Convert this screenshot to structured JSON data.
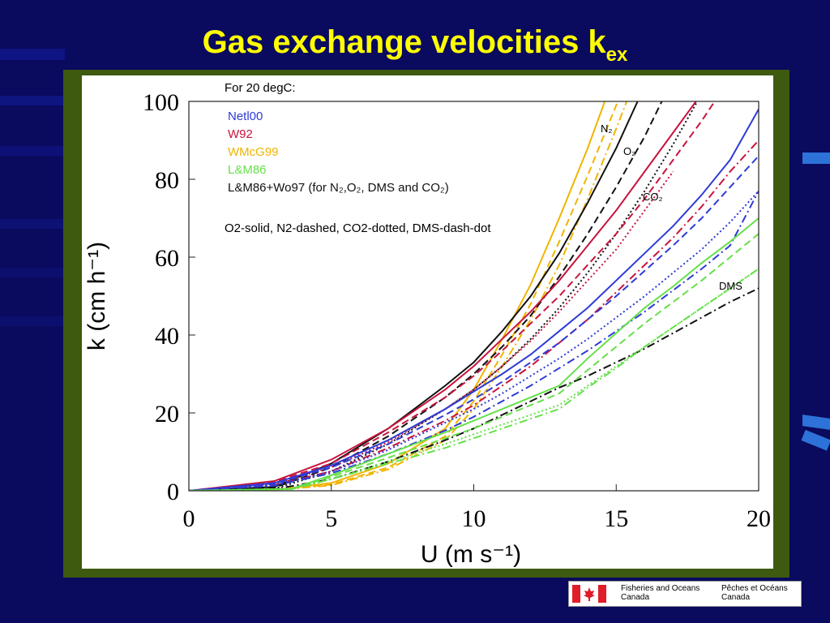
{
  "slide": {
    "title": "Gas exchange velocities k",
    "title_subscript": "ex",
    "title_color": "#ffff00",
    "background_color": "#0a0a5e",
    "frame_color": "#3d5a10"
  },
  "logo": {
    "name": "canada-flag-icon",
    "en_line1": "Fisheries and Oceans",
    "en_line2": "Canada",
    "fr_line1": "Pêches et Océans",
    "fr_line2": "Canada"
  },
  "chart_data": {
    "type": "line",
    "header": "For 20 degC:",
    "xlabel": "U (m s⁻¹)",
    "ylabel": "k  (cm h⁻¹)",
    "xlim": [
      0,
      20
    ],
    "ylim": [
      0,
      100
    ],
    "xticks": [
      "0",
      "5",
      "10",
      "15",
      "20"
    ],
    "yticks": [
      "0",
      "20",
      "40",
      "60",
      "80",
      "100"
    ],
    "grid": false,
    "legend_position": "top-left",
    "legend": [
      {
        "label": "Netl00",
        "color": "#2e3bd6"
      },
      {
        "label": "W92",
        "color": "#c8143c"
      },
      {
        "label": "WMcG99",
        "color": "#f0b400"
      },
      {
        "label": "L&M86",
        "color": "#66e04a"
      },
      {
        "label": "L&M86+Wo97 (for N₂,O₂, DMS and CO₂)",
        "color": "#111111"
      }
    ],
    "style_note": "O2-solid, N2-dashed, CO2-dotted, DMS-dash-dot",
    "curve_labels": [
      "N₂",
      "O₂",
      "CO₂",
      "DMS"
    ],
    "series": [
      {
        "name": "WMcG99 O2",
        "color": "#f0b400",
        "dash": "solid",
        "x": [
          0,
          3,
          5,
          7,
          9,
          10,
          11,
          12,
          13,
          14,
          15
        ],
        "y": [
          0,
          0.2,
          2,
          7,
          16,
          26,
          39,
          53,
          70,
          88,
          108
        ]
      },
      {
        "name": "WMcG99 N2",
        "color": "#f0b400",
        "dash": "dashed",
        "x": [
          0,
          3,
          5,
          7,
          9,
          10,
          11,
          12,
          13,
          14,
          15,
          16
        ],
        "y": [
          0,
          0.2,
          1.6,
          6,
          14,
          23,
          35,
          48,
          64,
          81,
          99,
          118
        ]
      },
      {
        "name": "WMcG99 DMS",
        "color": "#f0b400",
        "dash": "dashdot",
        "x": [
          0,
          3,
          5,
          7,
          9,
          10,
          11,
          12,
          13,
          14,
          15,
          16
        ],
        "y": [
          0,
          0.2,
          1.4,
          5.5,
          13,
          21,
          32,
          44,
          58,
          75,
          93,
          112
        ]
      },
      {
        "name": "L&M86+Wo97 O2",
        "color": "#111111",
        "dash": "solid",
        "x": [
          0,
          3,
          5,
          7,
          9,
          10,
          11,
          12,
          13,
          14,
          15,
          16
        ],
        "y": [
          0,
          1,
          7,
          16,
          27,
          33,
          41,
          50,
          61,
          74,
          88,
          104
        ]
      },
      {
        "name": "L&M86+Wo97 N2",
        "color": "#111111",
        "dash": "dashed",
        "x": [
          0,
          3,
          5,
          7,
          9,
          10,
          11,
          12,
          13,
          14,
          15,
          16,
          17
        ],
        "y": [
          0,
          0.8,
          6,
          14,
          24,
          30,
          37,
          45,
          55,
          66,
          78,
          91,
          106
        ]
      },
      {
        "name": "L&M86+Wo97 CO2",
        "color": "#111111",
        "dash": "dotted",
        "x": [
          0,
          3,
          5,
          7,
          9,
          10,
          11,
          12,
          13,
          14,
          15,
          16,
          17,
          18
        ],
        "y": [
          0,
          0.5,
          5,
          12,
          21,
          26,
          32,
          39,
          47,
          56,
          66,
          77,
          89,
          102
        ]
      },
      {
        "name": "L&M86+Wo97 DMS",
        "color": "#111111",
        "dash": "dashdot",
        "x": [
          0,
          3,
          5,
          7,
          9,
          10,
          11,
          12,
          13,
          14,
          15,
          16,
          17,
          18,
          19,
          20
        ],
        "y": [
          0,
          0.4,
          3,
          7.5,
          13,
          16,
          19.5,
          23,
          26.5,
          29.5,
          33,
          36.5,
          40.5,
          44.5,
          48.5,
          52
        ]
      },
      {
        "name": "W92 O2",
        "color": "#c8143c",
        "dash": "solid",
        "x": [
          0,
          3,
          5,
          7,
          9,
          10,
          11,
          12,
          13,
          14,
          15,
          16,
          17,
          18
        ],
        "y": [
          0,
          2.5,
          8,
          16,
          26,
          32,
          39,
          46,
          54,
          63,
          72,
          82,
          92,
          102
        ]
      },
      {
        "name": "W92 N2",
        "color": "#c8143c",
        "dash": "dashed",
        "x": [
          0,
          3,
          5,
          7,
          9,
          10,
          11,
          12,
          13,
          14,
          15,
          16,
          17,
          18,
          19
        ],
        "y": [
          0,
          2.3,
          7,
          15,
          24,
          29.5,
          36,
          43,
          50,
          58,
          66,
          75,
          85,
          95,
          106
        ]
      },
      {
        "name": "W92 CO2",
        "color": "#c8143c",
        "dash": "dotted",
        "x": [
          0,
          3,
          5,
          7,
          9,
          10,
          11,
          12,
          13,
          14,
          15,
          16,
          17
        ],
        "y": [
          0,
          1.8,
          6,
          12.5,
          21,
          26,
          32,
          38.5,
          46,
          54,
          62,
          72,
          82
        ]
      },
      {
        "name": "W92 DMS",
        "color": "#c8143c",
        "dash": "dashdot",
        "x": [
          0,
          3,
          5,
          7,
          9,
          10,
          11,
          12,
          13,
          14,
          15,
          16,
          17,
          18,
          19,
          20
        ],
        "y": [
          0,
          1.5,
          5,
          11,
          18,
          22,
          27,
          32,
          38,
          44,
          51,
          58,
          65,
          73,
          82,
          90
        ]
      },
      {
        "name": "Netl00 O2",
        "color": "#2e3bd6",
        "dash": "solid",
        "x": [
          0,
          3,
          5,
          7,
          9,
          10,
          11,
          12,
          13,
          14,
          15,
          16,
          17,
          18,
          19,
          20
        ],
        "y": [
          0,
          2,
          6.5,
          13,
          21,
          25.5,
          30,
          35,
          41,
          47,
          54,
          61,
          68,
          76,
          85,
          98
        ]
      },
      {
        "name": "Netl00 N2",
        "color": "#2e3bd6",
        "dash": "dashed",
        "x": [
          0,
          3,
          5,
          7,
          9,
          10,
          11,
          12,
          13,
          14,
          15,
          16,
          17,
          18,
          19,
          20
        ],
        "y": [
          0,
          1.8,
          6,
          12,
          19.5,
          23.5,
          28,
          33,
          38,
          44,
          50,
          56.5,
          63,
          70,
          78,
          86
        ]
      },
      {
        "name": "Netl00 CO2",
        "color": "#2e3bd6",
        "dash": "dotted",
        "x": [
          0,
          3,
          5,
          7,
          9,
          10,
          11,
          12,
          13,
          14,
          15,
          16,
          17,
          18,
          19,
          20
        ],
        "y": [
          0,
          1.5,
          5,
          10.5,
          17.5,
          21,
          25,
          29.5,
          34,
          39,
          44.5,
          50,
          56,
          62,
          69,
          77
        ]
      },
      {
        "name": "Netl00 DMS",
        "color": "#2e3bd6",
        "dash": "dashdot",
        "x": [
          0,
          3,
          5,
          7,
          9,
          10,
          11,
          12,
          13,
          14,
          15,
          16,
          17,
          18,
          19,
          20
        ],
        "y": [
          0,
          1.3,
          4.5,
          9.5,
          15.5,
          19,
          23,
          27,
          31.5,
          36,
          41,
          46,
          51.5,
          57,
          63,
          77
        ]
      },
      {
        "name": "L&M86 O2",
        "color": "#66e04a",
        "dash": "solid",
        "x": [
          0,
          3.6,
          5,
          7,
          9,
          10,
          11,
          12,
          13,
          14,
          15,
          16,
          17,
          18,
          19,
          20
        ],
        "y": [
          0,
          0.5,
          4,
          9.5,
          15,
          18,
          21,
          24,
          27,
          34,
          40.5,
          47,
          52.5,
          58.5,
          64,
          70
        ]
      },
      {
        "name": "L&M86 N2",
        "color": "#66e04a",
        "dash": "dashed",
        "x": [
          0,
          3.6,
          5,
          7,
          9,
          10,
          11,
          12,
          13,
          14,
          15,
          16,
          17,
          18,
          19,
          20
        ],
        "y": [
          0,
          0.5,
          3.6,
          8.5,
          13.5,
          16,
          19,
          22,
          25,
          31,
          37,
          43,
          48.5,
          54,
          60,
          66
        ]
      },
      {
        "name": "L&M86 CO2",
        "color": "#66e04a",
        "dash": "dotted",
        "x": [
          0,
          3.6,
          5,
          7,
          9,
          10,
          11,
          12,
          13,
          14,
          15,
          16,
          17,
          18,
          19,
          20
        ],
        "y": [
          0,
          0.4,
          3,
          7.5,
          12,
          14.5,
          17,
          19.5,
          22,
          27,
          32,
          37,
          42,
          47,
          52,
          57
        ]
      },
      {
        "name": "L&M86 DMS",
        "color": "#66e04a",
        "dash": "dashdot",
        "x": [
          0,
          3.6,
          5,
          7,
          9,
          10,
          11,
          12,
          13,
          14,
          15,
          16,
          17,
          18,
          19,
          20
        ],
        "y": [
          0,
          0.4,
          3,
          7,
          11,
          13.5,
          16,
          18.5,
          21,
          26.5,
          31.5,
          37,
          42,
          47,
          52,
          57
        ]
      }
    ]
  }
}
